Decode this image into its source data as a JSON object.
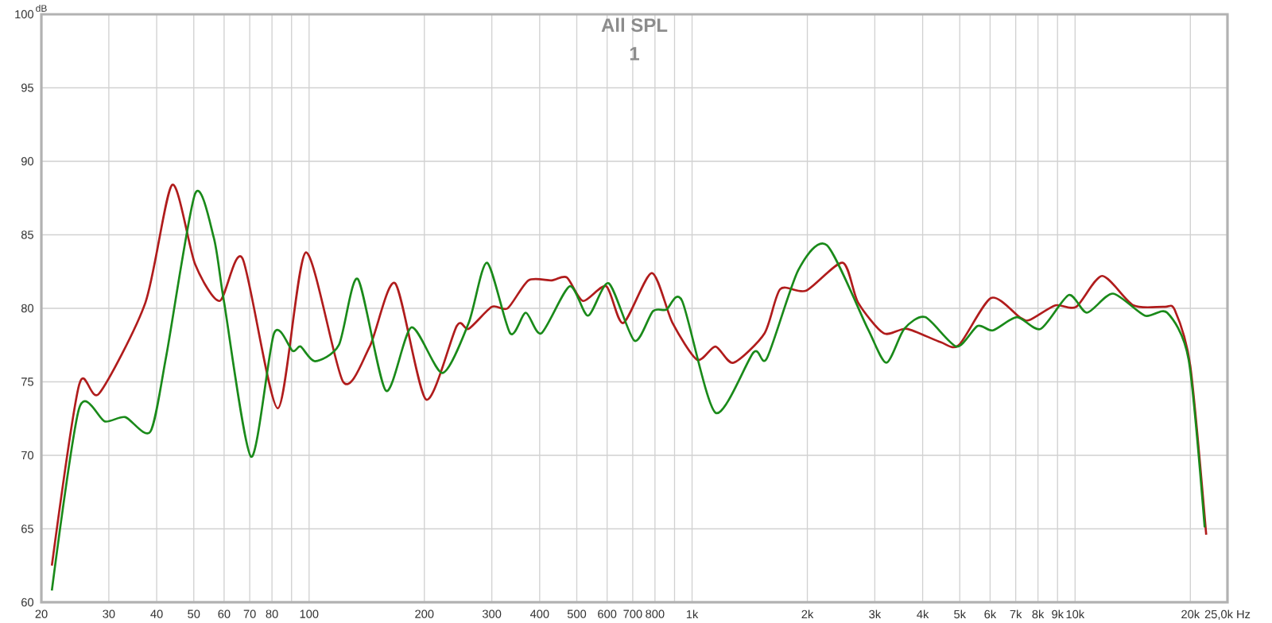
{
  "chart_data": {
    "type": "line",
    "title": "All SPL",
    "subtitle": "1",
    "ylabel": "dB",
    "xlim": [
      20,
      25000
    ],
    "ylim": [
      60,
      100
    ],
    "log": "x",
    "grid": true,
    "legend": false,
    "marker": "none",
    "line_style": "solid",
    "xticks": [
      20,
      30,
      40,
      50,
      60,
      70,
      80,
      {
        "value": 90,
        "label": null
      },
      100,
      200,
      300,
      400,
      500,
      600,
      700,
      800,
      {
        "value": 900,
        "label": null
      },
      {
        "value": 1000,
        "label": "1k"
      },
      {
        "value": 2000,
        "label": "2k"
      },
      {
        "value": 3000,
        "label": "3k"
      },
      {
        "value": 4000,
        "label": "4k"
      },
      {
        "value": 5000,
        "label": "5k"
      },
      {
        "value": 6000,
        "label": "6k"
      },
      {
        "value": 7000,
        "label": "7k"
      },
      {
        "value": 8000,
        "label": "8k"
      },
      {
        "value": 9000,
        "label": "9k"
      },
      {
        "value": 10000,
        "label": "10k"
      },
      {
        "value": 20000,
        "label": "20k"
      },
      {
        "value": 25000,
        "label": "25,0k Hz"
      }
    ],
    "yticks": [
      60,
      65,
      70,
      75,
      80,
      85,
      90,
      95,
      100
    ],
    "series": [
      {
        "color": "#b01c1c",
        "x": [
          21.3,
          25.1,
          28.3,
          37.4,
          43.9,
          50.4,
          58.4,
          67,
          82.9,
          98,
          122.7,
          144,
          167.8,
          202,
          243,
          261,
          300,
          330,
          374,
          430,
          471,
          519,
          597,
          661,
          785,
          889,
          1031,
          1151,
          1282,
          1546,
          1699,
          1986,
          2473,
          2712,
          3166,
          3638,
          4453,
          4973,
          6033,
          7165,
          7601,
          8891,
          10070,
          11770,
          14200,
          17110,
          18200,
          19990,
          22000
        ],
        "values": [
          62.5,
          74.8,
          74.2,
          80.4,
          88.4,
          83.0,
          80.5,
          83.4,
          73.2,
          83.8,
          75.0,
          77.4,
          81.7,
          73.8,
          78.8,
          78.6,
          80.1,
          80.0,
          81.9,
          81.9,
          82.1,
          80.5,
          81.5,
          79.0,
          82.4,
          79.0,
          76.5,
          77.4,
          76.3,
          78.3,
          81.3,
          81.2,
          83.1,
          80.4,
          78.3,
          78.6,
          77.7,
          77.5,
          80.7,
          79.4,
          79.2,
          80.2,
          80.1,
          82.2,
          80.2,
          80.1,
          79.9,
          76.1,
          64.6
        ]
      },
      {
        "color": "#1a8a1a",
        "x": [
          21.3,
          25.1,
          29.3,
          33.1,
          38.5,
          42.4,
          50.4,
          56.4,
          60,
          70.6,
          81,
          90.6,
          95,
          103.6,
          119.6,
          134,
          158.7,
          185,
          223,
          261,
          291.5,
          335,
          368,
          404,
          479,
          535,
          606,
          707,
          790,
          856,
          942,
          1151,
          1447,
          1568,
          1894,
          2248,
          2877,
          3216,
          3580,
          4063,
          4903,
          5562,
          6100,
          7054,
          8130,
          9630,
          10740,
          12550,
          15220,
          17400,
          19800,
          21800
        ],
        "values": [
          60.8,
          73.2,
          72.3,
          72.6,
          71.6,
          76.8,
          87.8,
          84.8,
          80.4,
          69.9,
          78.3,
          77.1,
          77.4,
          76.4,
          77.5,
          82.0,
          74.4,
          78.7,
          75.6,
          79.0,
          83.1,
          78.3,
          79.7,
          78.3,
          81.5,
          79.5,
          81.7,
          77.8,
          79.8,
          79.9,
          80.5,
          72.9,
          77.0,
          76.6,
          82.6,
          84.3,
          78.6,
          76.3,
          78.6,
          79.4,
          77.4,
          78.8,
          78.5,
          79.4,
          78.6,
          80.9,
          79.7,
          81.0,
          79.5,
          79.7,
          76.5,
          65.1
        ]
      }
    ]
  }
}
